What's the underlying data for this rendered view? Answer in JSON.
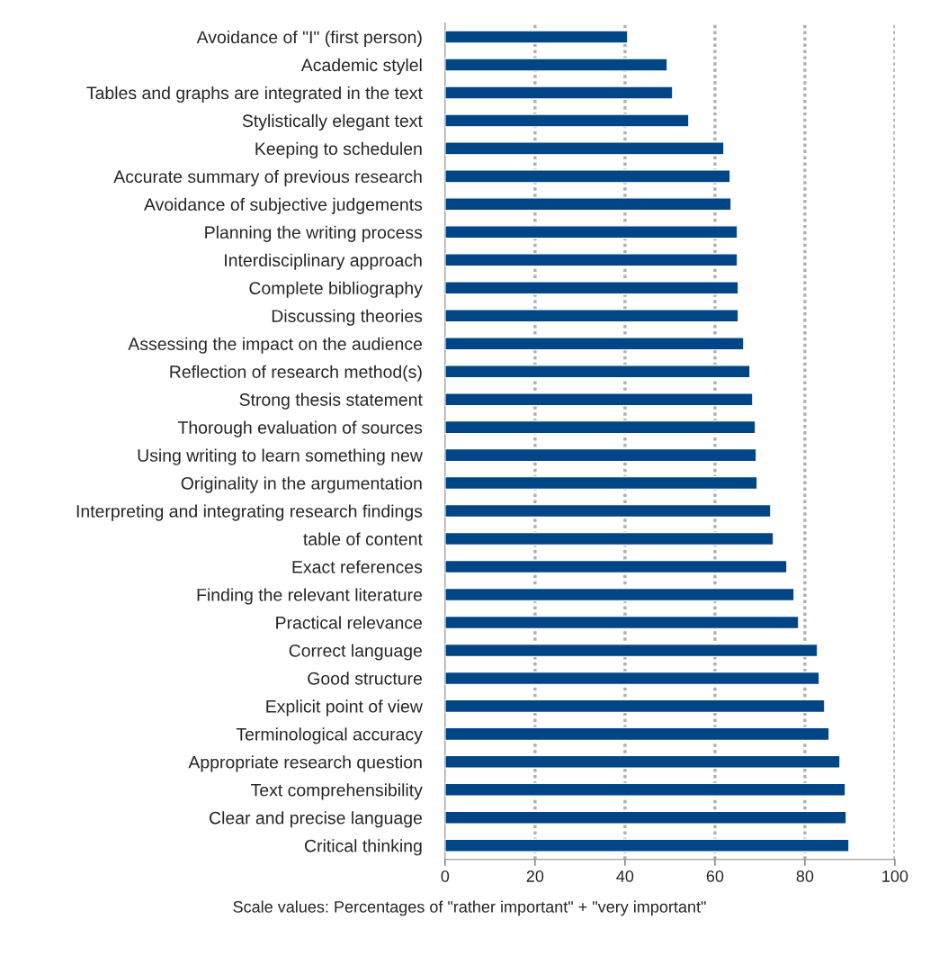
{
  "chart_data": {
    "type": "bar",
    "orientation": "horizontal",
    "categories": [
      "Avoidance of \"I\" (first person)",
      "Academic stylel",
      "Tables and graphs are integrated in the text",
      "Stylistically elegant text",
      "Keeping to schedulen",
      "Accurate summary of previous research",
      "Avoidance of subjective judgements",
      "Planning the writing process",
      "Interdisciplinary approach",
      "Complete bibliography",
      "Discussing theories",
      "Assessing the impact on the audience",
      "Reflection of research method(s)",
      "Strong thesis statement",
      "Thorough evaluation of sources",
      "Using writing to learn something new",
      "Originality in the argumentation",
      "Interpreting and integrating research findings",
      "table of content",
      "Exact references",
      "Finding the relevant literature",
      "Practical relevance",
      "Correct language",
      "Good structure",
      "Explicit point of view",
      "Terminological accuracy",
      "Appropriate research question",
      "Text comprehensibility",
      "Clear and precise language",
      "Critical thinking"
    ],
    "values": [
      40.6,
      49.4,
      50.6,
      54.2,
      62,
      63.4,
      63.6,
      65,
      65,
      65.2,
      65.2,
      66.4,
      67.8,
      68.4,
      69,
      69.2,
      69.4,
      72.4,
      73,
      76,
      77.6,
      78.6,
      82.8,
      83.2,
      84.4,
      85.4,
      87.8,
      89,
      89.2,
      89.8
    ],
    "color": "#004586",
    "xlim": [
      0,
      100
    ],
    "xticks": [
      0,
      20,
      40,
      60,
      80,
      100
    ],
    "grid": "x",
    "annotations": [
      "Scale values: Percentages of \"rather important\" + \"very important\""
    ]
  }
}
